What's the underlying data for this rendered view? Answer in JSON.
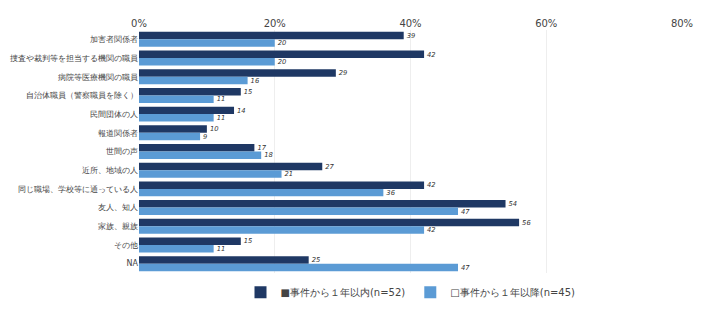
{
  "chart_data": {
    "type": "bar",
    "orientation": "horizontal",
    "categories": [
      "加害者関係者",
      "捜査や裁判等を担当する機関の職員",
      "病院等医療機関の職員",
      "自治体職員（警察職員を除く）",
      "民間団体の人",
      "報道関係者",
      "世間の声",
      "近所、地域の人",
      "同じ職場、学校等に通っている人",
      "友人、知人",
      "家族、親族",
      "その他",
      "NA"
    ],
    "series": [
      {
        "name": "■事件から１年以内(n=52)",
        "color": "#1F3864",
        "values": [
          39,
          42,
          29,
          15,
          14,
          10,
          17,
          27,
          42,
          54,
          56,
          15,
          25
        ]
      },
      {
        "name": "□事件から１年以降(n=45)",
        "color": "#5B9BD5",
        "values": [
          20,
          20,
          16,
          11,
          11,
          9,
          18,
          21,
          36,
          47,
          42,
          11,
          47
        ]
      }
    ],
    "xlim": [
      0,
      80
    ],
    "xticks": [
      {
        "value": 0,
        "label": "0%"
      },
      {
        "value": 20,
        "label": "20%"
      },
      {
        "value": 40,
        "label": "40%"
      },
      {
        "value": 60,
        "label": "60%"
      },
      {
        "value": 80,
        "label": "80%"
      }
    ],
    "grid": true,
    "data_labels": true,
    "legend": "bottom"
  }
}
